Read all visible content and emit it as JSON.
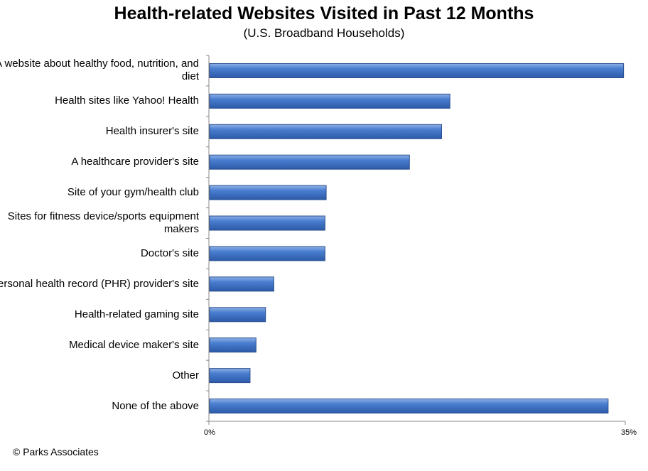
{
  "chart_data": {
    "type": "bar",
    "orientation": "horizontal",
    "title": "Health-related Websites Visited in Past 12 Months",
    "subtitle": "(U.S. Broadband Households)",
    "categories": [
      "A website about healthy food, nutrition, and diet",
      "Health sites like Yahoo! Health",
      "Health insurer's site",
      "A healthcare provider's site",
      "Site of your gym/health club",
      "Sites for fitness device/sports equipment makers",
      "Doctor's site",
      "Personal health record (PHR) provider's site",
      "Health-related gaming site",
      "Medical device maker's site",
      "Other",
      "None of the above"
    ],
    "values": [
      34.8,
      20.2,
      19.5,
      16.8,
      9.8,
      9.7,
      9.7,
      5.4,
      4.7,
      3.9,
      3.4,
      33.5
    ],
    "xlim": [
      0,
      35
    ],
    "x_tick_labels": [
      "0%",
      "35%"
    ],
    "grid": false,
    "legend": "none",
    "bar_color": "#4472c4"
  },
  "footer": {
    "copyright": "© Parks Associates"
  }
}
